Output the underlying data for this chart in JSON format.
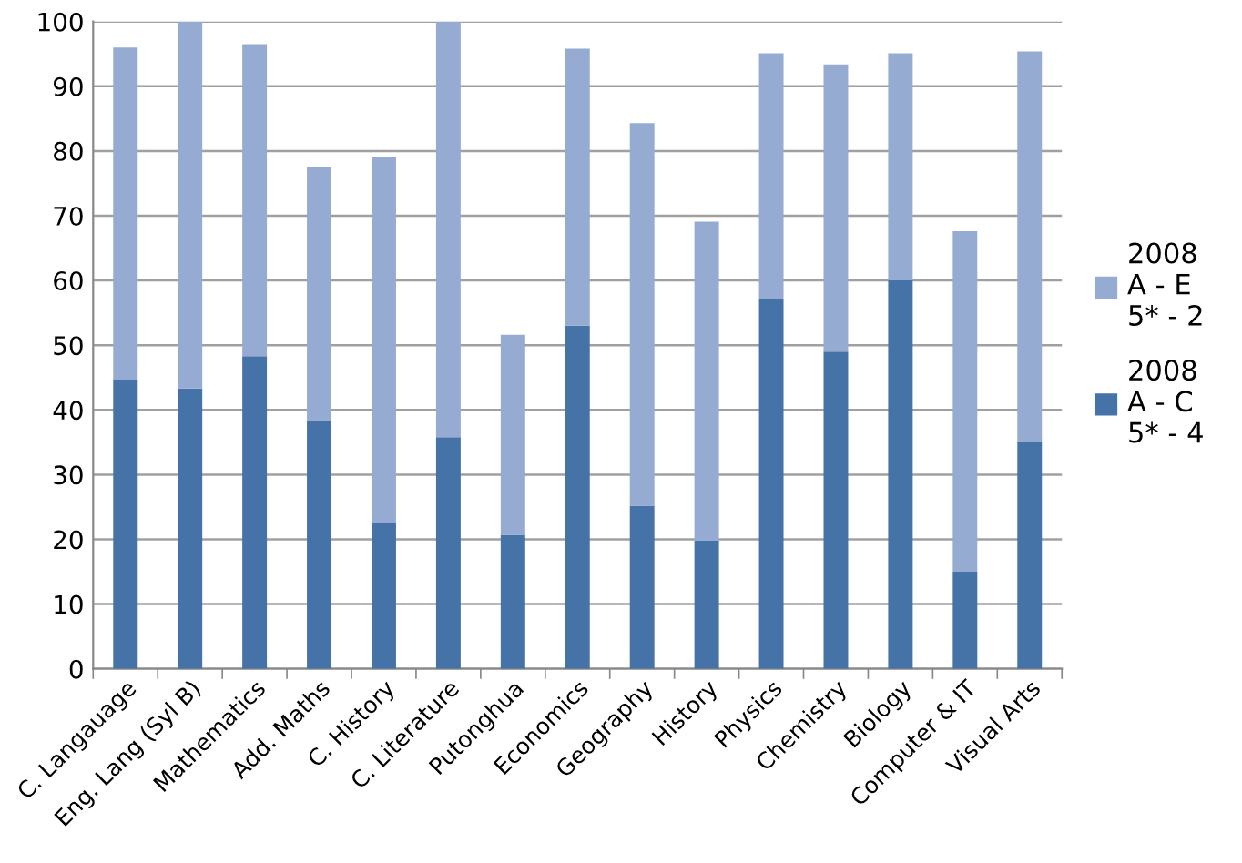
{
  "chart_data": {
    "type": "bar",
    "stacked": true,
    "categories": [
      "C. Langauage",
      "Eng. Lang (Syl B)",
      "Mathematics",
      "Add. Maths",
      "C. History",
      "C. Literature",
      "Putonghua",
      "Economics",
      "Geography",
      "History",
      "Physics",
      "Chemistry",
      "Biology",
      "Computer & IT",
      "Visual Arts"
    ],
    "series": [
      {
        "name": "2008\nA - C\n5* - 4",
        "color": "#4572a7",
        "values": [
          44.7,
          43.3,
          48.3,
          38.2,
          22.5,
          35.8,
          20.7,
          53.0,
          25.2,
          19.8,
          57.2,
          49.0,
          60.0,
          15.0,
          35.0
        ]
      },
      {
        "name": "2008\nA - E\n5* - 2",
        "color": "#95abd1",
        "values": [
          51.3,
          56.7,
          48.2,
          39.4,
          56.5,
          64.2,
          30.9,
          42.8,
          59.1,
          49.3,
          37.9,
          44.4,
          35.1,
          52.6,
          60.4
        ]
      }
    ],
    "ylim": [
      0,
      100
    ],
    "yticks": [
      0,
      10,
      20,
      30,
      40,
      50,
      60,
      70,
      80,
      90,
      100
    ],
    "grid": "y",
    "legend": "right"
  }
}
